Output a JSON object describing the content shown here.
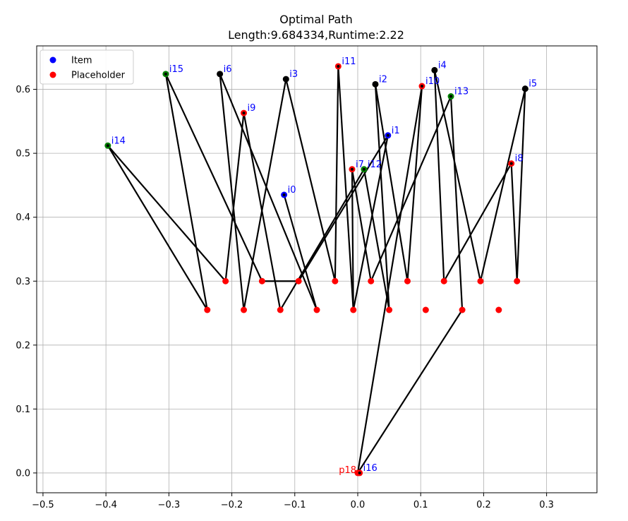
{
  "chart_data": {
    "type": "scatter",
    "title": "Optimal Path",
    "subtitle": "Length:9.684334,Runtime:2.22",
    "xlim": [
      -0.51,
      0.38
    ],
    "ylim": [
      -0.031,
      0.668
    ],
    "xticks": [
      -0.5,
      -0.4,
      -0.3,
      -0.2,
      -0.1,
      0.0,
      0.1,
      0.2,
      0.3
    ],
    "xtick_labels": [
      "−0.5",
      "−0.4",
      "−0.3",
      "−0.2",
      "−0.1",
      "0.0",
      "0.1",
      "0.2",
      "0.3"
    ],
    "yticks": [
      0.0,
      0.1,
      0.2,
      0.3,
      0.4,
      0.5,
      0.6
    ],
    "ytick_labels": [
      "0.0",
      "0.1",
      "0.2",
      "0.3",
      "0.4",
      "0.5",
      "0.6"
    ],
    "grid": true,
    "legend": {
      "position": "top-left",
      "entries": [
        {
          "label": "Item",
          "color": "#0000ff"
        },
        {
          "label": "Placeholder",
          "color": "#ff0000"
        }
      ]
    },
    "colors": {
      "item": "#0000ff",
      "placeholder": "#ff0000",
      "start": "#008000",
      "visited": "#000000",
      "path": "#000000",
      "item_label": "#0000ff",
      "placeholder_label": "#ff0000"
    },
    "item_points": [
      {
        "name": "i0",
        "x": -0.117,
        "y": 0.435,
        "color": "#0000ff"
      },
      {
        "name": "i1",
        "x": 0.048,
        "y": 0.528,
        "color": "#0000ff"
      },
      {
        "name": "i2",
        "x": 0.028,
        "y": 0.608,
        "color": "#000000"
      },
      {
        "name": "i3",
        "x": -0.114,
        "y": 0.616,
        "color": "#000000"
      },
      {
        "name": "i4",
        "x": 0.122,
        "y": 0.63,
        "color": "#000000"
      },
      {
        "name": "i5",
        "x": 0.266,
        "y": 0.601,
        "color": "#000000"
      },
      {
        "name": "i6",
        "x": -0.219,
        "y": 0.624,
        "color": "#000000"
      },
      {
        "name": "i7",
        "x": -0.009,
        "y": 0.475,
        "color": "#ff0000"
      },
      {
        "name": "i8",
        "x": 0.244,
        "y": 0.484,
        "color": "#ff0000"
      },
      {
        "name": "i9",
        "x": -0.181,
        "y": 0.563,
        "color": "#ff0000"
      },
      {
        "name": "i10",
        "x": 0.102,
        "y": 0.605,
        "color": "#ff0000"
      },
      {
        "name": "i11",
        "x": -0.031,
        "y": 0.636,
        "color": "#ff0000"
      },
      {
        "name": "i12",
        "x": 0.01,
        "y": 0.475,
        "color": "#008000"
      },
      {
        "name": "i13",
        "x": 0.148,
        "y": 0.589,
        "color": "#008000"
      },
      {
        "name": "i14",
        "x": -0.397,
        "y": 0.512,
        "color": "#008000"
      },
      {
        "name": "i15",
        "x": -0.305,
        "y": 0.624,
        "color": "#008000"
      },
      {
        "name": "i16",
        "x": 0.003,
        "y": 0.0,
        "color": "#ff0000"
      }
    ],
    "placeholder_points": [
      {
        "x": -0.239,
        "y": 0.255
      },
      {
        "x": -0.181,
        "y": 0.255
      },
      {
        "x": -0.123,
        "y": 0.255
      },
      {
        "x": -0.065,
        "y": 0.255
      },
      {
        "x": -0.007,
        "y": 0.255
      },
      {
        "x": 0.05,
        "y": 0.255
      },
      {
        "x": 0.108,
        "y": 0.255
      },
      {
        "x": 0.166,
        "y": 0.255
      },
      {
        "x": 0.224,
        "y": 0.255
      },
      {
        "x": -0.21,
        "y": 0.3
      },
      {
        "x": -0.152,
        "y": 0.3
      },
      {
        "x": -0.094,
        "y": 0.3
      },
      {
        "x": -0.036,
        "y": 0.3
      },
      {
        "x": 0.021,
        "y": 0.3
      },
      {
        "x": 0.079,
        "y": 0.3
      },
      {
        "x": 0.137,
        "y": 0.3
      },
      {
        "x": 0.195,
        "y": 0.3
      },
      {
        "x": 0.253,
        "y": 0.3
      }
    ],
    "origin_point": {
      "name": "p18",
      "x": 0.0,
      "y": 0.0
    },
    "path_segments": [
      [
        [
          -0.397,
          0.512
        ],
        [
          -0.239,
          0.255
        ]
      ],
      [
        [
          -0.397,
          0.512
        ],
        [
          -0.21,
          0.3
        ]
      ],
      [
        [
          -0.21,
          0.3
        ],
        [
          -0.181,
          0.563
        ]
      ],
      [
        [
          -0.181,
          0.563
        ],
        [
          -0.123,
          0.255
        ]
      ],
      [
        [
          -0.123,
          0.255
        ],
        [
          0.01,
          0.475
        ]
      ],
      [
        [
          0.01,
          0.475
        ],
        [
          0.05,
          0.255
        ]
      ],
      [
        [
          0.05,
          0.255
        ],
        [
          0.028,
          0.608
        ]
      ],
      [
        [
          0.028,
          0.608
        ],
        [
          0.079,
          0.3
        ]
      ],
      [
        [
          0.079,
          0.3
        ],
        [
          0.102,
          0.605
        ]
      ],
      [
        [
          0.102,
          0.605
        ],
        [
          0.0,
          0.0
        ]
      ],
      [
        [
          0.0,
          0.0
        ],
        [
          0.166,
          0.255
        ]
      ],
      [
        [
          0.166,
          0.255
        ],
        [
          0.148,
          0.589
        ]
      ],
      [
        [
          0.148,
          0.589
        ],
        [
          0.021,
          0.3
        ]
      ],
      [
        [
          0.021,
          0.3
        ],
        [
          -0.009,
          0.475
        ]
      ],
      [
        [
          -0.009,
          0.475
        ],
        [
          -0.007,
          0.255
        ]
      ],
      [
        [
          -0.007,
          0.255
        ],
        [
          0.048,
          0.528
        ]
      ],
      [
        [
          0.048,
          0.528
        ],
        [
          -0.094,
          0.3
        ]
      ],
      [
        [
          -0.094,
          0.3
        ],
        [
          -0.152,
          0.3
        ]
      ],
      [
        [
          -0.152,
          0.3
        ],
        [
          -0.305,
          0.624
        ]
      ],
      [
        [
          -0.305,
          0.624
        ],
        [
          -0.239,
          0.255
        ]
      ],
      [
        [
          -0.181,
          0.255
        ],
        [
          -0.114,
          0.616
        ]
      ],
      [
        [
          -0.114,
          0.616
        ],
        [
          -0.036,
          0.3
        ]
      ],
      [
        [
          -0.036,
          0.3
        ],
        [
          -0.031,
          0.636
        ]
      ],
      [
        [
          -0.031,
          0.636
        ],
        [
          -0.007,
          0.255
        ]
      ],
      [
        [
          -0.065,
          0.255
        ],
        [
          -0.117,
          0.435
        ]
      ],
      [
        [
          -0.219,
          0.624
        ],
        [
          -0.181,
          0.255
        ]
      ],
      [
        [
          -0.219,
          0.624
        ],
        [
          -0.065,
          0.255
        ]
      ],
      [
        [
          0.122,
          0.63
        ],
        [
          0.137,
          0.3
        ]
      ],
      [
        [
          0.122,
          0.63
        ],
        [
          0.195,
          0.3
        ]
      ],
      [
        [
          0.137,
          0.3
        ],
        [
          0.244,
          0.484
        ]
      ],
      [
        [
          0.244,
          0.484
        ],
        [
          0.253,
          0.3
        ]
      ],
      [
        [
          0.253,
          0.3
        ],
        [
          0.266,
          0.601
        ]
      ],
      [
        [
          0.266,
          0.601
        ],
        [
          0.195,
          0.3
        ]
      ]
    ]
  }
}
